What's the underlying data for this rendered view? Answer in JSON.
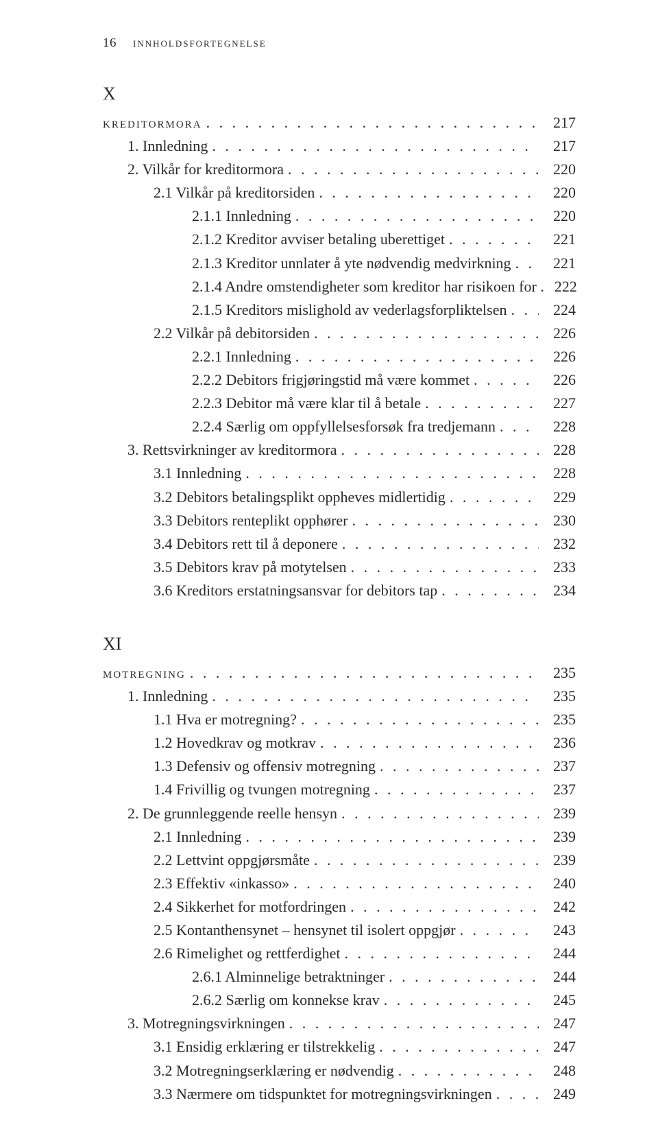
{
  "header": {
    "page_number": "16",
    "running_title": "innholdsfortegnelse"
  },
  "chapters": [
    {
      "label": "X",
      "title_row": {
        "text": "kreditormora",
        "page": "217"
      },
      "entries": [
        {
          "lvl": 1,
          "text": "1.  Innledning",
          "page": "217"
        },
        {
          "lvl": 1,
          "text": "2.  Vilkår for kreditormora",
          "page": "220"
        },
        {
          "lvl": 2,
          "text": "2.1 Vilkår på kreditorsiden",
          "page": "220"
        },
        {
          "lvl": 3,
          "text": "2.1.1 Innledning",
          "page": "220"
        },
        {
          "lvl": 3,
          "text": "2.1.2 Kreditor avviser betaling uberettiget",
          "page": "221"
        },
        {
          "lvl": 3,
          "text": "2.1.3 Kreditor unnlater å yte nødvendig medvirkning",
          "page": "221"
        },
        {
          "lvl": 3,
          "text": "2.1.4 Andre omstendigheter som kreditor har risikoen for .",
          "page": "222",
          "nodots": true
        },
        {
          "lvl": 3,
          "text": "2.1.5 Kreditors mislighold av vederlagsforpliktelsen",
          "page": "224"
        },
        {
          "lvl": 2,
          "text": "2.2 Vilkår på debitorsiden",
          "page": "226"
        },
        {
          "lvl": 3,
          "text": "2.2.1 Innledning",
          "page": "226"
        },
        {
          "lvl": 3,
          "text": "2.2.2 Debitors frigjøringstid må være kommet",
          "page": "226"
        },
        {
          "lvl": 3,
          "text": "2.2.3 Debitor må være klar til å betale",
          "page": "227"
        },
        {
          "lvl": 3,
          "text": "2.2.4 Særlig om oppfyllelsesforsøk fra tredjemann",
          "page": "228"
        },
        {
          "lvl": 1,
          "text": "3.  Rettsvirkninger av kreditormora",
          "page": "228"
        },
        {
          "lvl": 2,
          "text": "3.1 Innledning",
          "page": "228"
        },
        {
          "lvl": 2,
          "text": "3.2 Debitors betalingsplikt oppheves midlertidig",
          "page": "229"
        },
        {
          "lvl": 2,
          "text": "3.3 Debitors renteplikt opphører",
          "page": "230"
        },
        {
          "lvl": 2,
          "text": "3.4 Debitors rett til å deponere",
          "page": "232"
        },
        {
          "lvl": 2,
          "text": "3.5 Debitors krav på motytelsen",
          "page": "233"
        },
        {
          "lvl": 2,
          "text": "3.6 Kreditors erstatningsansvar for debitors tap",
          "page": "234"
        }
      ]
    },
    {
      "label": "XI",
      "title_row": {
        "text": "motregning",
        "page": "235"
      },
      "entries": [
        {
          "lvl": 1,
          "text": "1.  Innledning",
          "page": "235"
        },
        {
          "lvl": 2,
          "text": "1.1 Hva er motregning?",
          "page": "235"
        },
        {
          "lvl": 2,
          "text": "1.2 Hovedkrav og motkrav",
          "page": "236"
        },
        {
          "lvl": 2,
          "text": "1.3 Defensiv og offensiv motregning",
          "page": "237"
        },
        {
          "lvl": 2,
          "text": "1.4 Frivillig og tvungen motregning",
          "page": "237"
        },
        {
          "lvl": 1,
          "text": "2.  De grunnleggende reelle hensyn",
          "page": "239"
        },
        {
          "lvl": 2,
          "text": "2.1 Innledning",
          "page": "239"
        },
        {
          "lvl": 2,
          "text": "2.2 Lettvint oppgjørsmåte",
          "page": "239"
        },
        {
          "lvl": 2,
          "text": "2.3 Effektiv «inkasso»",
          "page": "240"
        },
        {
          "lvl": 2,
          "text": "2.4 Sikkerhet for motfordringen",
          "page": "242"
        },
        {
          "lvl": 2,
          "text": "2.5 Kontanthensynet – hensynet til isolert oppgjør",
          "page": "243"
        },
        {
          "lvl": 2,
          "text": "2.6 Rimelighet og rettferdighet",
          "page": "244"
        },
        {
          "lvl": 3,
          "text": "2.6.1 Alminnelige betraktninger",
          "page": "244"
        },
        {
          "lvl": 3,
          "text": "2.6.2 Særlig om konnekse krav",
          "page": "245"
        },
        {
          "lvl": 1,
          "text": "3.  Motregningsvirkningen",
          "page": "247"
        },
        {
          "lvl": 2,
          "text": "3.1 Ensidig erklæring er tilstrekkelig",
          "page": "247"
        },
        {
          "lvl": 2,
          "text": "3.2 Motregningserklæring er nødvendig",
          "page": "248"
        },
        {
          "lvl": 2,
          "text": "3.3 Nærmere om tidspunktet for motregningsvirkningen",
          "page": "249"
        }
      ]
    }
  ]
}
